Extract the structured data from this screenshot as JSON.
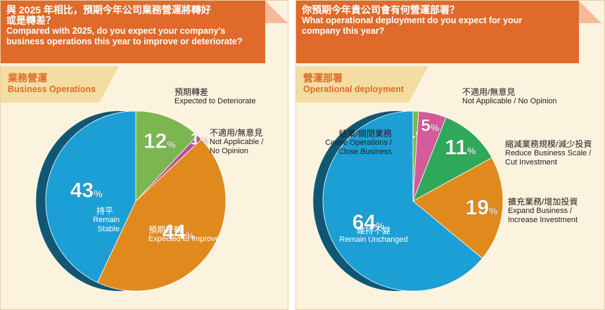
{
  "left": {
    "title_zh_1": "與 2025 年相比，預期今年公司業務營運將轉好",
    "title_zh_2": "或是轉差？",
    "title_en_1": "Compared with 2025, do you expect your company's",
    "title_en_2": "business operations this year to improve or deteriorate?",
    "subtitle_zh": "業務營運",
    "subtitle_en": "Business Operations",
    "labels": {
      "deteriorate_zh": "預期轉差",
      "deteriorate_en": "Expected to Deteriorate",
      "na_zh": "不適用/無意見",
      "na_en_1": "Not Applicable /",
      "na_en_2": "No Opinion",
      "stable_zh": "持平",
      "stable_en": "Remain Stable",
      "improve_zh": "預期好轉",
      "improve_en": "Expected to Improve"
    }
  },
  "right": {
    "title_zh": "你預期今年貴公司會有何營運部署？",
    "title_en_1": "What operational deployment do you expect for your",
    "title_en_2": "company this year?",
    "subtitle_zh": "營運部署",
    "subtitle_en": "Operational deployment",
    "labels": {
      "na_zh": "不適用/無意見",
      "na_en": "Not Applicable / No Opinion",
      "cease_zh": "結業/關閉業務",
      "cease_en_1": "Cease Operations /",
      "cease_en_2": "Close Business",
      "reduce_zh": "縮減業務規模/減少投資",
      "reduce_en_1": "Reduce Business Scale /",
      "reduce_en_2": "Cut Investment",
      "expand_zh": "擴充業務/增加投資",
      "expand_en_1": "Expand Business /",
      "expand_en_2": "Increase Investment",
      "maintain_zh": "維持不變",
      "maintain_en": "Remain Unchanged"
    }
  },
  "chart_data": [
    {
      "type": "pie",
      "title": "業務營運 Business Operations",
      "slices": [
        {
          "label": "預期轉差 Expected to Deteriorate",
          "value": 12,
          "color": "#7cb650"
        },
        {
          "label": "不適用/無意見 Not Applicable / No Opinion",
          "value": 1,
          "color": "#b5549b"
        },
        {
          "label": "預期好轉 Expected to Improve",
          "value": 44,
          "color": "#e08a1e"
        },
        {
          "label": "持平 Remain Stable",
          "value": 43,
          "color": "#1c9fd4"
        }
      ]
    },
    {
      "type": "pie",
      "title": "營運部署 Operational deployment",
      "slices": [
        {
          "label": "結業/關閉業務 Cease Operations / Close Business",
          "value": 1,
          "color": "#7cb650"
        },
        {
          "label": "不適用/無意見 Not Applicable / No Opinion",
          "value": 5,
          "color": "#d45a9a"
        },
        {
          "label": "縮減業務規模/減少投資 Reduce Business Scale / Cut Investment",
          "value": 11,
          "color": "#2fa85a"
        },
        {
          "label": "擴充業務/增加投資 Expand Business / Increase Investment",
          "value": 19,
          "color": "#e08a1e"
        },
        {
          "label": "維持不變 Remain Unchanged",
          "value": 64,
          "color": "#1c9fd4"
        }
      ]
    }
  ]
}
